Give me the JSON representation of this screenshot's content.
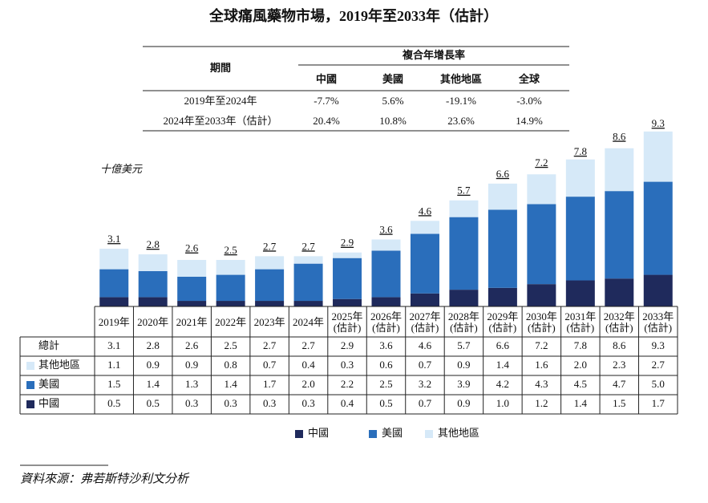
{
  "title": "全球痛風藥物市場，2019年至2033年（估計）",
  "cagr_table": {
    "header": {
      "period": "期間",
      "group": "複合年增長率",
      "columns": [
        "中國",
        "美國",
        "其他地區",
        "全球"
      ]
    },
    "rows": [
      {
        "period": "2019年至2024年",
        "values": [
          "-7.7%",
          "5.6%",
          "-19.1%",
          "-3.0%"
        ]
      },
      {
        "period": "2024年至2033年（估計）",
        "values": [
          "20.4%",
          "10.8%",
          "23.6%",
          "14.9%"
        ]
      }
    ]
  },
  "chart_data": {
    "type": "stacked_bar",
    "y_label": "十億美元",
    "categories": [
      "2019年",
      "2020年",
      "2021年",
      "2022年",
      "2023年",
      "2024年",
      "2025年\n(估計)",
      "2026年\n(估計)",
      "2027年\n(估計)",
      "2028年\n(估計)",
      "2029年\n(估計)",
      "2030年\n(估計)",
      "2031年\n(估計)",
      "2032年\n(估計)",
      "2033年\n(估計)"
    ],
    "total_label": "總計",
    "totals": [
      3.1,
      2.8,
      2.6,
      2.5,
      2.7,
      2.7,
      2.9,
      3.6,
      4.6,
      5.7,
      6.6,
      7.2,
      7.8,
      8.6,
      9.3
    ],
    "series": [
      {
        "name": "中國",
        "color": "#1f2a5c",
        "values": [
          0.5,
          0.5,
          0.3,
          0.3,
          0.3,
          0.3,
          0.4,
          0.5,
          0.7,
          0.9,
          1.0,
          1.2,
          1.4,
          1.5,
          1.7
        ],
        "value_labels": [
          "0.5",
          "0.5",
          "0.3",
          "0.3",
          "0.3",
          "0.3",
          "0.4",
          "0.5",
          "0.7",
          "0.9",
          "1.0",
          "1.2",
          "1.4",
          "1.5",
          "1.7"
        ]
      },
      {
        "name": "美國",
        "color": "#2a6ebb",
        "values": [
          1.5,
          1.4,
          1.3,
          1.4,
          1.7,
          2.0,
          2.2,
          2.5,
          3.2,
          3.9,
          4.2,
          4.3,
          4.5,
          4.7,
          5.0
        ],
        "value_labels": [
          "1.5",
          "1.4",
          "1.3",
          "1.4",
          "1.7",
          "2.0",
          "2.2",
          "2.5",
          "3.2",
          "3.9",
          "4.2",
          "4.3",
          "4.5",
          "4.7",
          "5.0"
        ]
      },
      {
        "name": "其他地區",
        "color": "#d6e9f8",
        "values": [
          1.1,
          0.9,
          0.9,
          0.8,
          0.7,
          0.4,
          0.3,
          0.6,
          0.7,
          0.9,
          1.4,
          1.6,
          2.0,
          2.3,
          2.7
        ],
        "value_labels": [
          "1.1",
          "0.9",
          "0.9",
          "0.8",
          "0.7",
          "0.4",
          "0.3",
          "0.6",
          "0.7",
          "0.9",
          "1.4",
          "1.6",
          "2.0",
          "2.3",
          "2.7"
        ]
      }
    ]
  },
  "source": "資料來源：弗若斯特沙利文分析"
}
